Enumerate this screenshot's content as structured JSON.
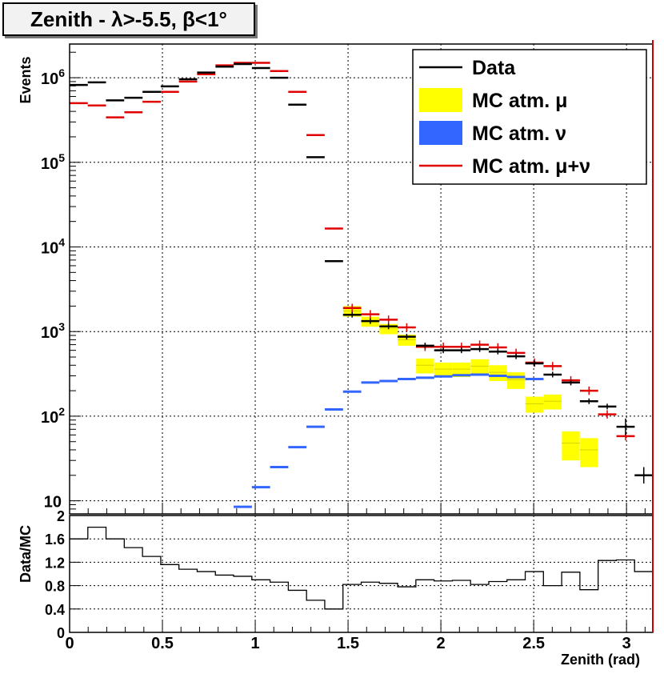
{
  "title": "Zenith - λ>-5.5, β<1°",
  "colors": {
    "data": "#000000",
    "mc_mu": "#ffff00",
    "mc_nu": "#3366ff",
    "mc_sum": "#e00000",
    "frame": "#cc0000"
  },
  "chart_data": [
    {
      "type": "histogram",
      "scale": "log",
      "ylabel": "Events",
      "xlim": [
        0,
        3.1416
      ],
      "ylim": [
        7,
        2500000
      ],
      "bin_width": 0.0982,
      "y_ticks": [
        {
          "value": 10,
          "base": "10",
          "exp": ""
        },
        {
          "value": 100,
          "base": "10",
          "exp": "2"
        },
        {
          "value": 1000,
          "base": "10",
          "exp": "3"
        },
        {
          "value": 10000,
          "base": "10",
          "exp": "4"
        },
        {
          "value": 100000,
          "base": "10",
          "exp": "5"
        },
        {
          "value": 1000000,
          "base": "10",
          "exp": "6"
        }
      ],
      "legend": {
        "position": "top-right",
        "entries": [
          {
            "label": "Data",
            "style": "line",
            "color": "#000000"
          },
          {
            "label": "MC atm. μ",
            "style": "box",
            "color": "#ffff00"
          },
          {
            "label": "MC atm. ν",
            "style": "box",
            "color": "#3366ff"
          },
          {
            "label": "MC atm. μ+ν",
            "style": "line",
            "color": "#e00000"
          }
        ]
      },
      "series": [
        {
          "name": "Data",
          "color": "#000000",
          "x": [
            0.049,
            0.147,
            0.245,
            0.344,
            0.442,
            0.54,
            0.638,
            0.736,
            0.835,
            0.933,
            1.031,
            1.129,
            1.227,
            1.325,
            1.424,
            1.522,
            1.62,
            1.718,
            1.816,
            1.915,
            2.013,
            2.111,
            2.209,
            2.307,
            2.405,
            2.504,
            2.602,
            2.7,
            2.798,
            2.896,
            2.995,
            3.093
          ],
          "values": [
            820000,
            880000,
            540000,
            580000,
            680000,
            790000,
            960000,
            1150000,
            1350000,
            1450000,
            1300000,
            1000000,
            480000,
            115000,
            6800,
            1580,
            1330,
            1150,
            870,
            680,
            600,
            600,
            620,
            580,
            510,
            420,
            310,
            250,
            150,
            130,
            75,
            20
          ]
        },
        {
          "name": "MC atm. μ",
          "color": "#ffff00",
          "x": [
            1.522,
            1.62,
            1.718,
            1.816,
            1.915,
            2.013,
            2.111,
            2.209,
            2.307,
            2.405,
            2.504,
            2.602,
            2.7,
            2.798
          ],
          "values": [
            1750,
            1320,
            1080,
            800,
            400,
            360,
            360,
            390,
            330,
            270,
            140,
            150,
            48,
            40
          ],
          "errors": [
            250,
            180,
            150,
            120,
            80,
            70,
            70,
            80,
            70,
            60,
            30,
            30,
            18,
            15
          ]
        },
        {
          "name": "MC atm. ν",
          "color": "#3366ff",
          "x": [
            0.933,
            1.031,
            1.129,
            1.227,
            1.325,
            1.424,
            1.522,
            1.62,
            1.718,
            1.816,
            1.915,
            2.013,
            2.111,
            2.209,
            2.307,
            2.405,
            2.504
          ],
          "values": [
            8.5,
            14.5,
            25,
            43,
            75,
            120,
            195,
            250,
            260,
            275,
            285,
            295,
            305,
            310,
            300,
            290,
            275
          ]
        },
        {
          "name": "MC atm. μ+ν",
          "color": "#e00000",
          "x": [
            0.049,
            0.147,
            0.245,
            0.344,
            0.442,
            0.54,
            0.638,
            0.736,
            0.835,
            0.933,
            1.031,
            1.129,
            1.227,
            1.325,
            1.424,
            1.522,
            1.62,
            1.718,
            1.816,
            1.915,
            2.013,
            2.111,
            2.209,
            2.307,
            2.405,
            2.504,
            2.602,
            2.7,
            2.798,
            2.896,
            2.995,
            3.093
          ],
          "values": [
            500000,
            470000,
            340000,
            390000,
            520000,
            680000,
            900000,
            1100000,
            1400000,
            1500000,
            1500000,
            1200000,
            680000,
            210000,
            16500,
            1900,
            1600,
            1380,
            1120,
            660,
            660,
            660,
            700,
            650,
            560,
            430,
            390,
            265,
            200,
            105,
            58,
            20
          ]
        }
      ]
    },
    {
      "type": "step",
      "ylabel": "Data/MC",
      "xlabel": "Zenith (rad)",
      "xlim": [
        0,
        3.1416
      ],
      "ylim": [
        0,
        2
      ],
      "x_ticks": [
        "0",
        "0.5",
        "1",
        "1.5",
        "2",
        "2.5",
        "3"
      ],
      "x_tick_values": [
        0,
        0.5,
        1,
        1.5,
        2,
        2.5,
        3
      ],
      "y_ticks": [
        "0",
        "0.4",
        "0.8",
        "1.2",
        "1.6",
        "2"
      ],
      "y_tick_values": [
        0,
        0.4,
        0.8,
        1.2,
        1.6,
        2
      ],
      "x_edges": [
        0,
        0.0982,
        0.1963,
        0.2945,
        0.3927,
        0.4909,
        0.589,
        0.6872,
        0.7854,
        0.8836,
        0.9817,
        1.0799,
        1.1781,
        1.2763,
        1.3744,
        1.4726,
        1.5708,
        1.669,
        1.7671,
        1.8653,
        1.9635,
        2.0617,
        2.1598,
        2.258,
        2.3562,
        2.4544,
        2.5525,
        2.6507,
        2.7489,
        2.8471,
        2.9452,
        3.0434,
        3.1416
      ],
      "values": [
        1.6,
        1.8,
        1.6,
        1.45,
        1.3,
        1.16,
        1.08,
        1.04,
        0.98,
        0.96,
        0.9,
        0.86,
        0.72,
        0.55,
        0.4,
        0.82,
        0.86,
        0.84,
        0.78,
        0.9,
        0.88,
        0.89,
        0.82,
        0.87,
        0.9,
        1.04,
        0.8,
        1.03,
        0.73,
        1.23,
        1.24,
        1.04
      ]
    }
  ]
}
